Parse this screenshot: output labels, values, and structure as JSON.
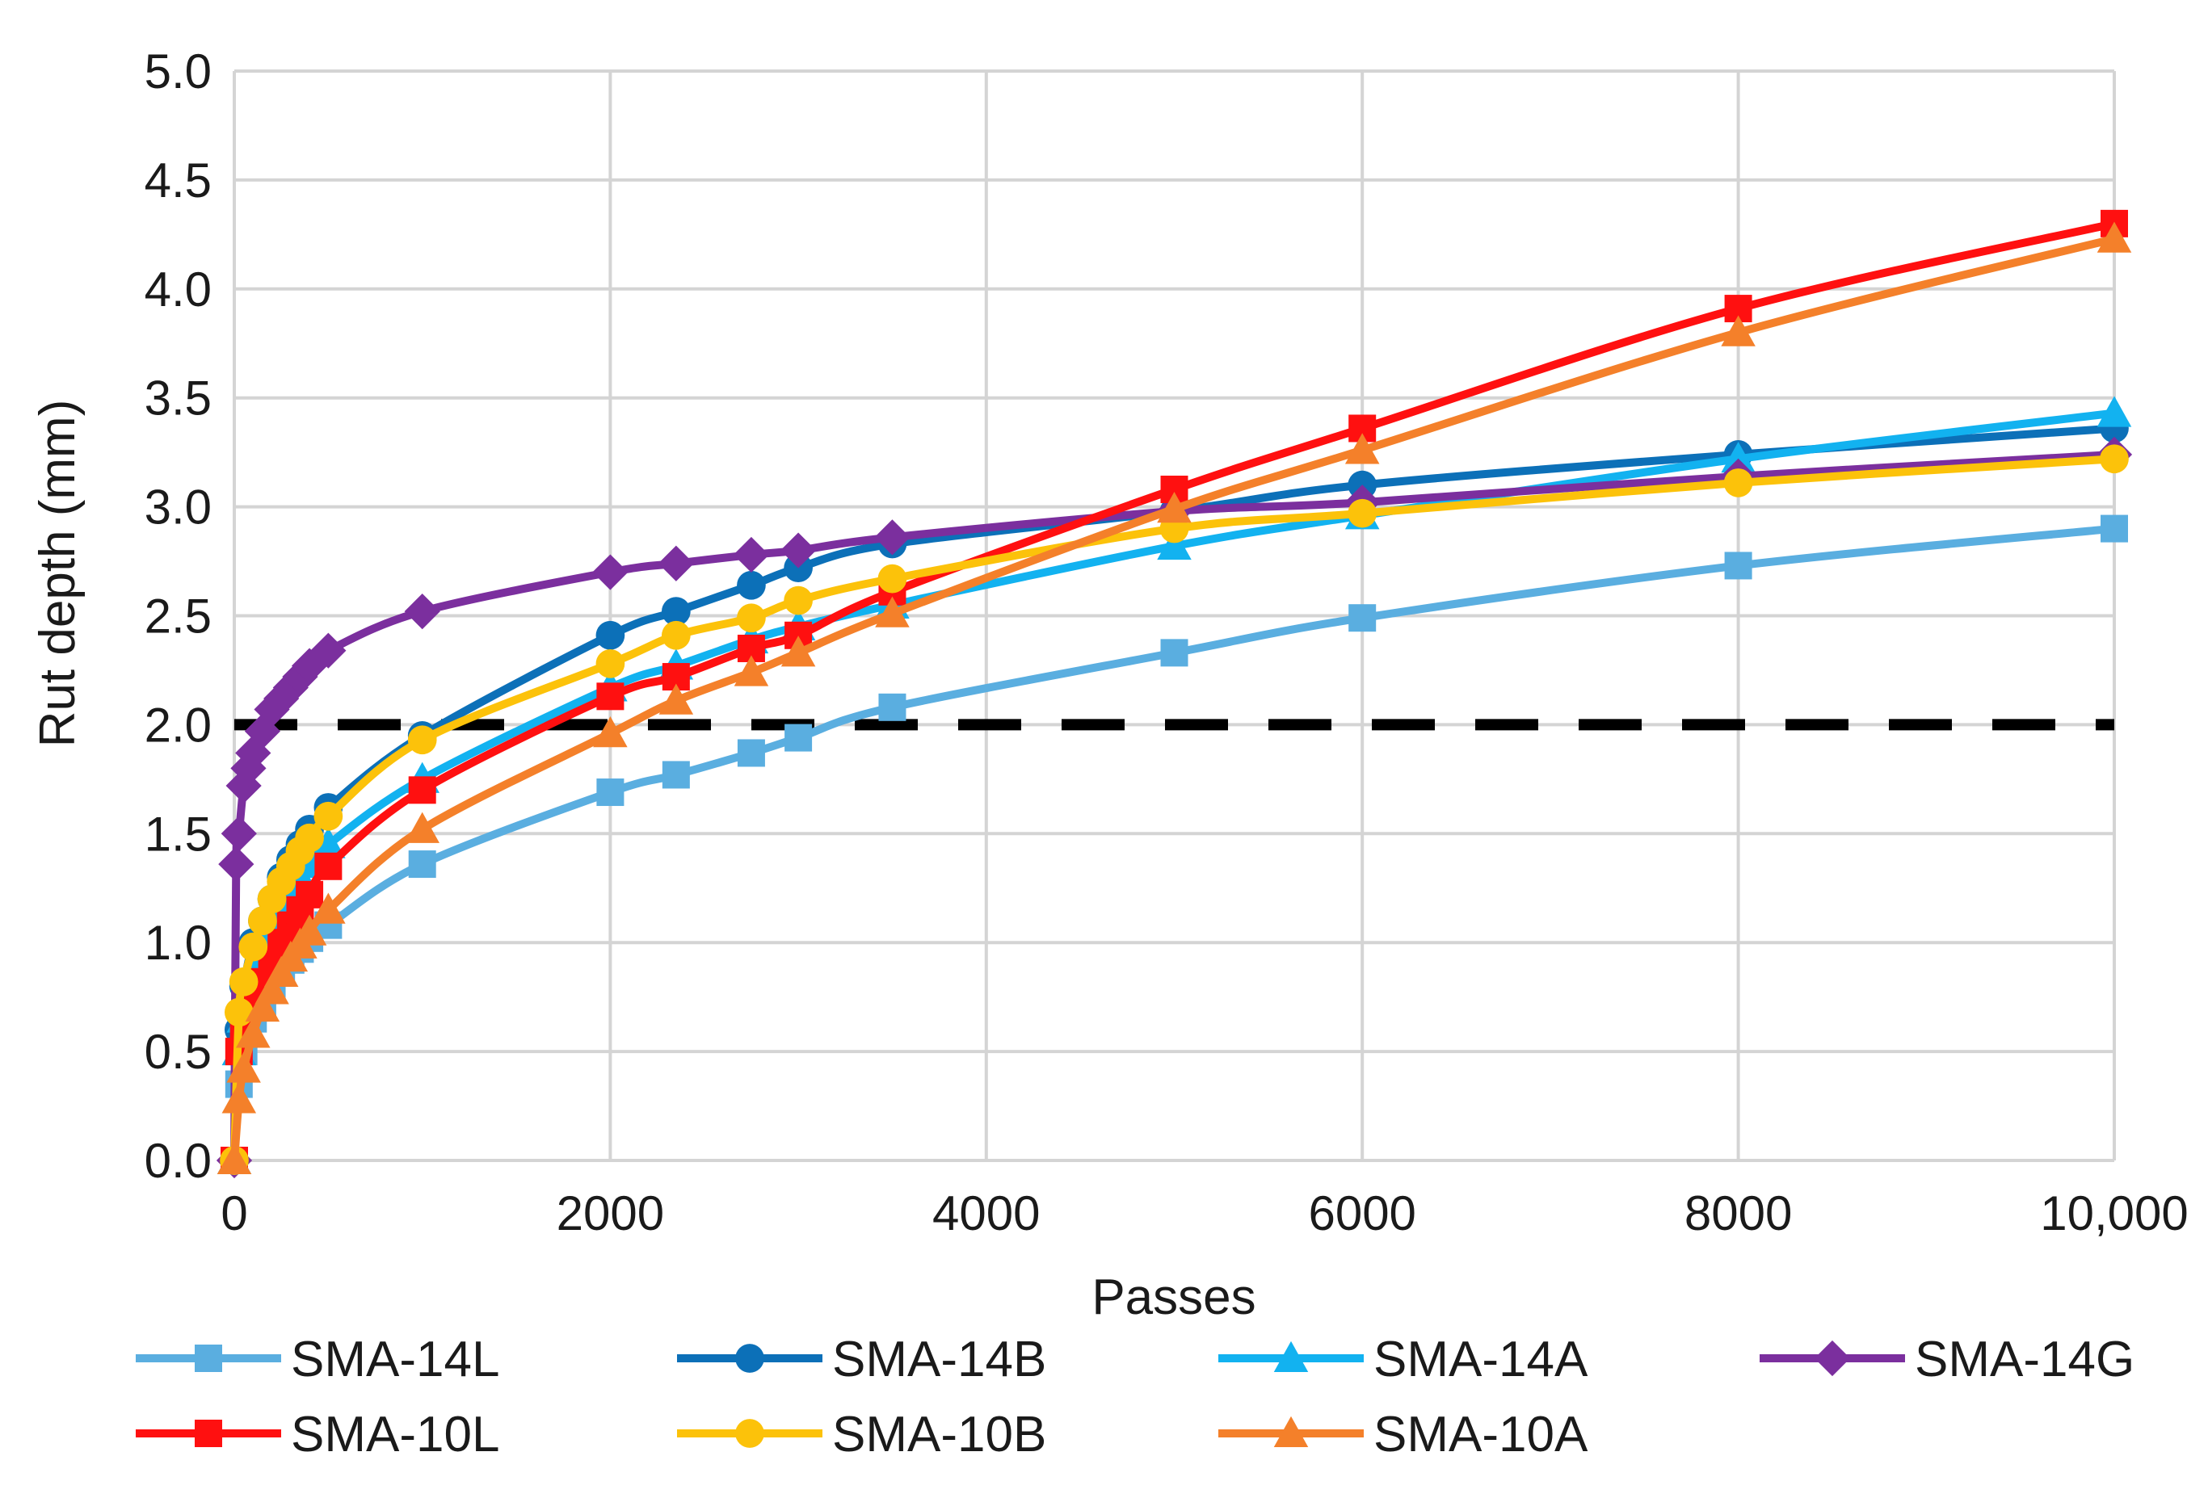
{
  "chart_data": {
    "type": "line",
    "title": "",
    "xlabel": "Passes",
    "ylabel": "Rut depth (mm)",
    "xlim": [
      0,
      10000
    ],
    "ylim": [
      0,
      5.0
    ],
    "x_ticks": [
      0,
      2000,
      4000,
      6000,
      8000,
      10000
    ],
    "x_tick_labels": [
      "0",
      "2000",
      "4000",
      "6000",
      "8000",
      "10,000"
    ],
    "y_ticks": [
      0,
      0.5,
      1.0,
      1.5,
      2.0,
      2.5,
      3.0,
      3.5,
      4.0,
      4.5,
      5.0
    ],
    "y_tick_labels": [
      "0.0",
      "0.5",
      "1.0",
      "1.5",
      "2.0",
      "2.5",
      "3.0",
      "3.5",
      "4.0",
      "4.5",
      "5.0"
    ],
    "grid": true,
    "legend_position": "bottom",
    "threshold": {
      "value": 2.0,
      "style": "dashed",
      "color": "#000000"
    },
    "series": [
      {
        "name": "SMA-14L",
        "color": "#5aaee0",
        "marker": "square",
        "x": [
          0,
          25,
          50,
          100,
          150,
          200,
          250,
          300,
          350,
          400,
          500,
          1000,
          2000,
          2350,
          2750,
          3000,
          3500,
          5000,
          6000,
          8000,
          10000
        ],
        "y": [
          0,
          0.35,
          0.5,
          0.65,
          0.72,
          0.8,
          0.86,
          0.92,
          0.97,
          1.02,
          1.08,
          1.36,
          1.69,
          1.77,
          1.87,
          1.94,
          2.08,
          2.33,
          2.49,
          2.73,
          2.9
        ]
      },
      {
        "name": "SMA-14B",
        "color": "#0c70b8",
        "marker": "circle",
        "x": [
          0,
          25,
          50,
          100,
          150,
          200,
          250,
          300,
          350,
          400,
          500,
          1000,
          2000,
          2350,
          2750,
          3000,
          3500,
          5000,
          6000,
          8000,
          10000
        ],
        "y": [
          0,
          0.6,
          0.8,
          1.0,
          1.1,
          1.2,
          1.3,
          1.38,
          1.45,
          1.52,
          1.62,
          1.95,
          2.41,
          2.52,
          2.64,
          2.72,
          2.83,
          2.98,
          3.1,
          3.24,
          3.36
        ]
      },
      {
        "name": "SMA-14A",
        "color": "#12b2f0",
        "marker": "triangle",
        "x": [
          0,
          25,
          50,
          100,
          150,
          200,
          250,
          300,
          350,
          400,
          500,
          1000,
          2000,
          2350,
          2750,
          3000,
          3500,
          5000,
          6000,
          8000,
          10000
        ],
        "y": [
          0,
          0.5,
          0.65,
          0.82,
          0.95,
          1.05,
          1.15,
          1.22,
          1.3,
          1.36,
          1.45,
          1.75,
          2.17,
          2.27,
          2.39,
          2.45,
          2.55,
          2.82,
          2.96,
          3.22,
          3.43
        ]
      },
      {
        "name": "SMA-14G",
        "color": "#7b2f9e",
        "marker": "diamond",
        "x": [
          0,
          10,
          25,
          50,
          75,
          100,
          150,
          200,
          250,
          300,
          350,
          400,
          500,
          1000,
          2000,
          2350,
          2750,
          3000,
          3500,
          5000,
          6000,
          8000,
          10000
        ],
        "y": [
          0,
          1.36,
          1.5,
          1.72,
          1.8,
          1.87,
          1.97,
          2.07,
          2.12,
          2.17,
          2.22,
          2.27,
          2.34,
          2.52,
          2.7,
          2.74,
          2.78,
          2.8,
          2.86,
          2.98,
          3.02,
          3.14,
          3.24
        ]
      },
      {
        "name": "SMA-10L",
        "color": "#ff1010",
        "marker": "square",
        "x": [
          0,
          25,
          50,
          100,
          150,
          200,
          250,
          300,
          350,
          400,
          500,
          1000,
          2000,
          2350,
          2750,
          3000,
          3500,
          5000,
          6000,
          8000,
          10000
        ],
        "y": [
          0,
          0.5,
          0.6,
          0.72,
          0.82,
          0.92,
          1.0,
          1.08,
          1.15,
          1.22,
          1.35,
          1.7,
          2.13,
          2.22,
          2.35,
          2.41,
          2.61,
          3.08,
          3.36,
          3.91,
          4.3
        ]
      },
      {
        "name": "SMA-10B",
        "color": "#fcc20a",
        "marker": "circle",
        "x": [
          0,
          25,
          50,
          100,
          150,
          200,
          250,
          300,
          350,
          400,
          500,
          1000,
          2000,
          2350,
          2750,
          3000,
          3500,
          5000,
          6000,
          8000,
          10000
        ],
        "y": [
          0,
          0.68,
          0.82,
          0.98,
          1.1,
          1.2,
          1.28,
          1.35,
          1.42,
          1.48,
          1.58,
          1.93,
          2.28,
          2.41,
          2.49,
          2.57,
          2.67,
          2.9,
          2.97,
          3.11,
          3.22
        ]
      },
      {
        "name": "SMA-10A",
        "color": "#f4802a",
        "marker": "triangle",
        "x": [
          0,
          25,
          50,
          100,
          150,
          200,
          250,
          300,
          350,
          400,
          500,
          1000,
          2000,
          2350,
          2750,
          3000,
          3500,
          5000,
          6000,
          8000,
          10000
        ],
        "y": [
          0,
          0.28,
          0.42,
          0.58,
          0.7,
          0.78,
          0.86,
          0.93,
          0.99,
          1.05,
          1.15,
          1.52,
          1.96,
          2.11,
          2.24,
          2.33,
          2.51,
          2.99,
          3.26,
          3.8,
          4.23
        ]
      }
    ]
  }
}
